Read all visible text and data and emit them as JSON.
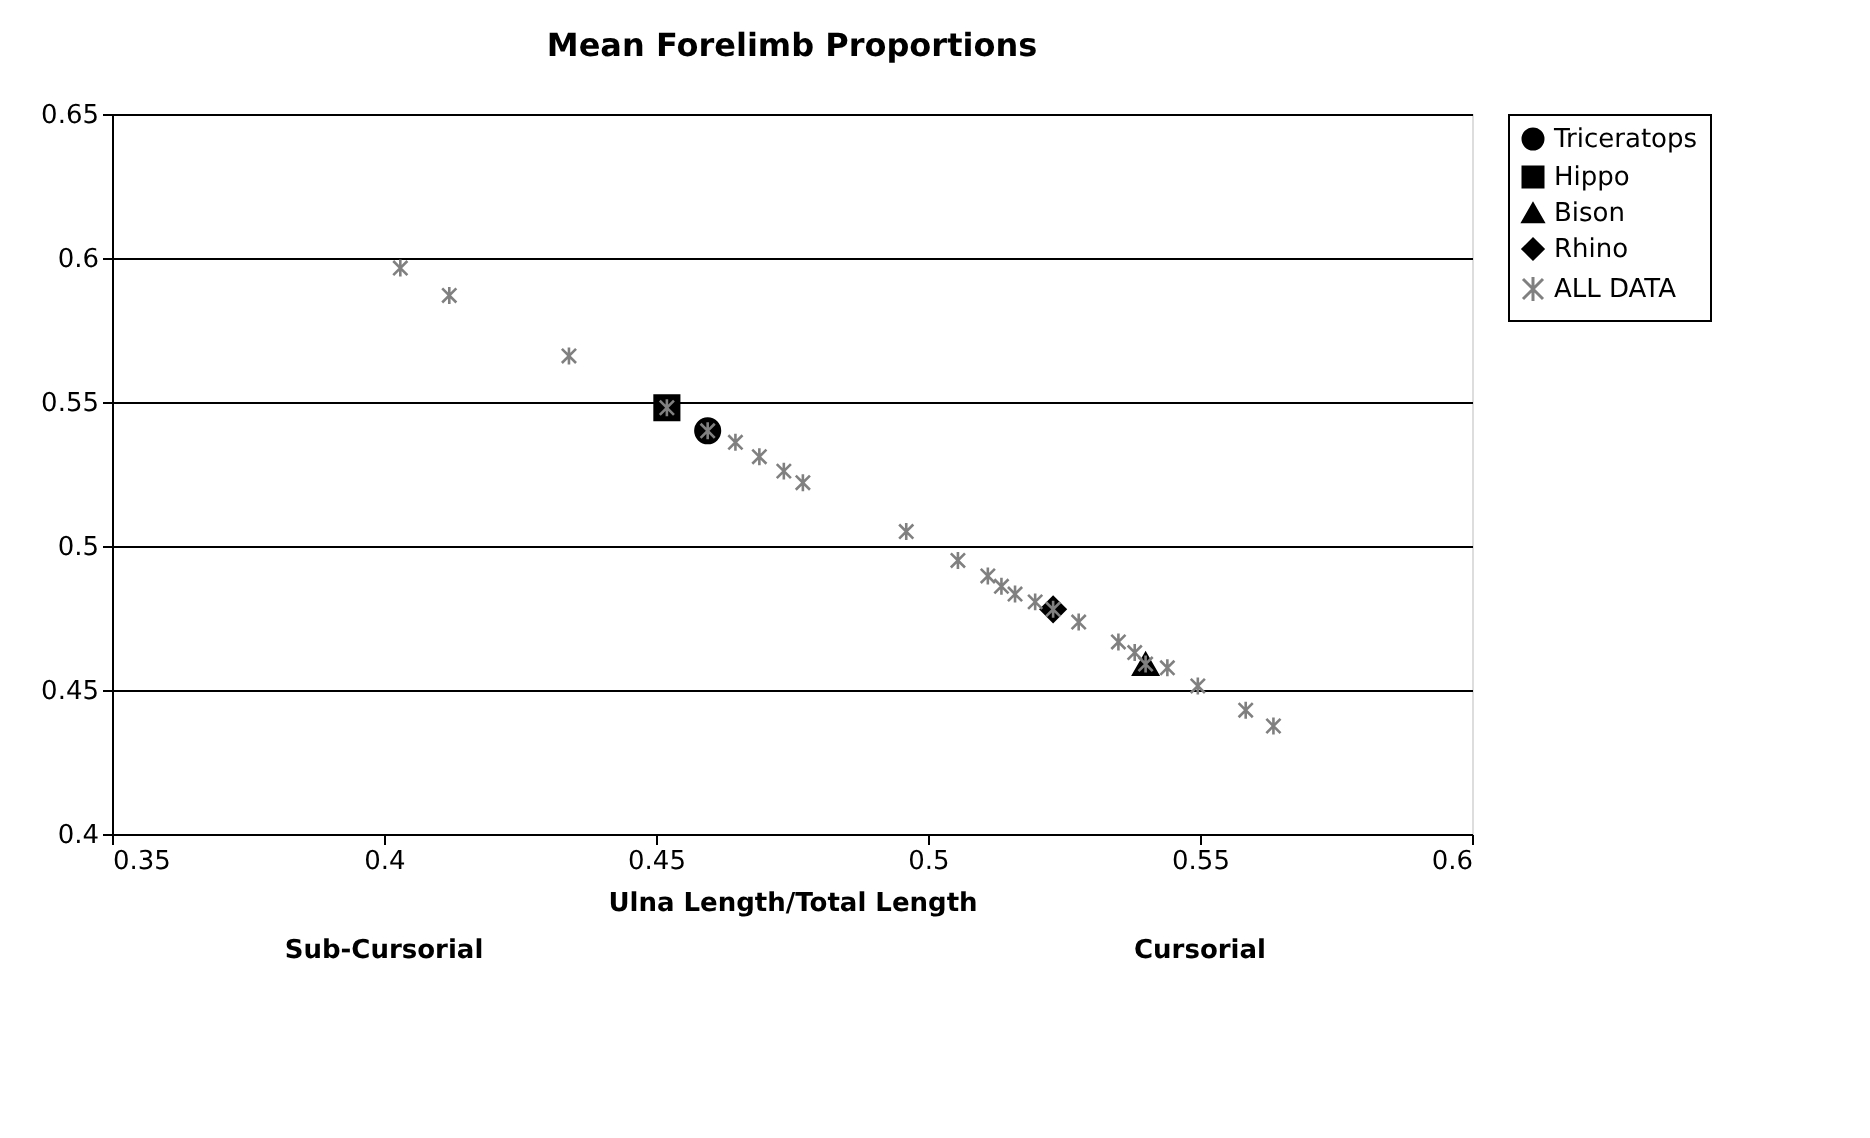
{
  "chart_data": {
    "type": "scatter",
    "title": "Mean Forelimb Proportions",
    "xlabel": "Ulna Length/Total Length",
    "annotations": [
      "Sub-Cursorial",
      "Cursorial"
    ],
    "xlim": [
      0.35,
      0.6
    ],
    "xticks": [
      0.35,
      0.4,
      0.45,
      0.5,
      0.55,
      0.6
    ],
    "ylim": [
      0.4,
      0.65
    ],
    "yticks": [
      0.4,
      0.45,
      0.5,
      0.55,
      0.6,
      0.65
    ],
    "grid": "y",
    "legend": "right",
    "series": [
      {
        "name": "Triceratops",
        "color": "#000000",
        "marker": "circle",
        "x": [
          0.4595
        ],
        "values": [
          0.54
        ]
      },
      {
        "name": "Hippo",
        "color": "#000000",
        "marker": "square",
        "x": [
          0.452
        ],
        "values": [
          0.548
        ]
      },
      {
        "name": "Bison",
        "color": "#000000",
        "marker": "triangle",
        "x": [
          0.54
        ],
        "values": [
          0.459
        ]
      },
      {
        "name": "Rhino",
        "color": "#000000",
        "marker": "diamond",
        "x": [
          0.523
        ],
        "values": [
          0.478
        ]
      },
      {
        "name": "ALL DATA",
        "color": "#808080",
        "marker": "cross",
        "x": [
          0.403,
          0.412,
          0.434,
          0.452,
          0.4595,
          0.4646,
          0.469,
          0.4735,
          0.477,
          0.496,
          0.5055,
          0.511,
          0.5135,
          0.516,
          0.5197,
          0.523,
          0.5277,
          0.535,
          0.538,
          0.54,
          0.544,
          0.5496,
          0.5584,
          0.5635
        ],
        "values": [
          0.5965,
          0.587,
          0.566,
          0.548,
          0.54,
          0.536,
          0.531,
          0.526,
          0.522,
          0.505,
          0.495,
          0.4896,
          0.486,
          0.4833,
          0.4806,
          0.478,
          0.4736,
          0.4667,
          0.463,
          0.459,
          0.4577,
          0.4514,
          0.443,
          0.4375
        ]
      }
    ]
  }
}
